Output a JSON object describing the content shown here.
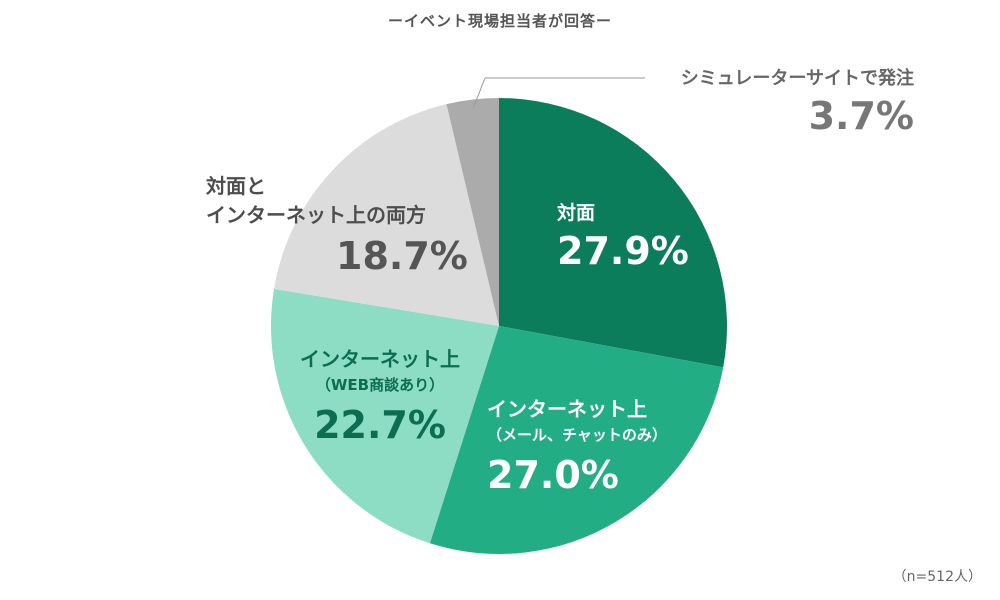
{
  "header": {
    "title": "ーイベント現場担当者が回答ー"
  },
  "footnote": "（n=512人）",
  "chart_data": {
    "type": "pie",
    "title": "ーイベント現場担当者が回答ー",
    "slices": [
      {
        "label": "対面",
        "sublabel": "",
        "value": 27.9,
        "display": "27.9%",
        "color": "#0b7d5a"
      },
      {
        "label": "インターネット上",
        "sublabel": "（メール、チャットのみ）",
        "value": 27.0,
        "display": "27.0%",
        "color": "#23ad85"
      },
      {
        "label": "インターネット上",
        "sublabel": "（WEB商談あり）",
        "value": 22.7,
        "display": "22.7%",
        "color": "#8ddcc4"
      },
      {
        "label": "対面と",
        "sublabel": "インターネット上の両方",
        "value": 18.7,
        "display": "18.7%",
        "color": "#dcdcdc"
      },
      {
        "label": "シミュレーターサイトで発注",
        "sublabel": "",
        "value": 3.7,
        "display": "3.7%",
        "color": "#ababab"
      }
    ]
  }
}
